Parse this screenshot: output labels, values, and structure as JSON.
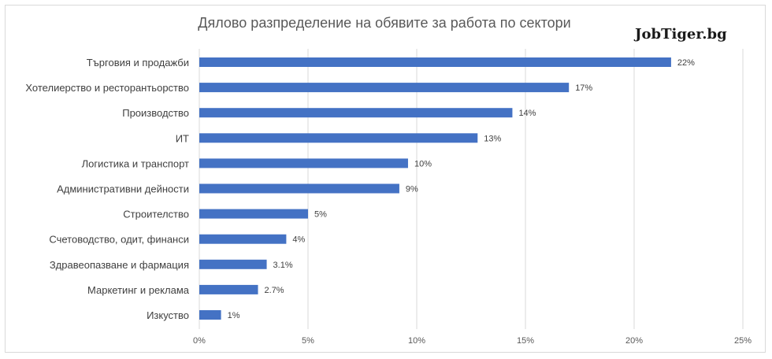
{
  "chart_data": {
    "type": "bar",
    "orientation": "horizontal",
    "title": "Дялово разпределение на обявите за работа по сектори",
    "brand": "JobTiger.bg",
    "categories": [
      "Търговия и продажби",
      "Хотелиерство и ресторантьорство",
      "Производство",
      "ИТ",
      "Логистика и транспорт",
      "Административни дейности",
      "Строителство",
      "Счетоводство, одит, финанси",
      "Здравеопазване и фармация",
      "Маркетинг и реклама",
      "Изкуство"
    ],
    "values": [
      21.7,
      17.0,
      14.4,
      12.8,
      9.6,
      9.2,
      5.0,
      4.0,
      3.1,
      2.7,
      1.0
    ],
    "value_labels": [
      "22%",
      "17%",
      "14%",
      "13%",
      "10%",
      "9%",
      "5%",
      "4%",
      "3.1%",
      "2.7%",
      "1%"
    ],
    "xlim": [
      0,
      25
    ],
    "xticks": [
      0,
      5,
      10,
      15,
      20,
      25
    ],
    "xtick_labels": [
      "0%",
      "5%",
      "10%",
      "15%",
      "20%",
      "25%"
    ],
    "gridlines": "vertical",
    "bar_color": "#4472c4",
    "grid_color": "#d9d9d9"
  }
}
